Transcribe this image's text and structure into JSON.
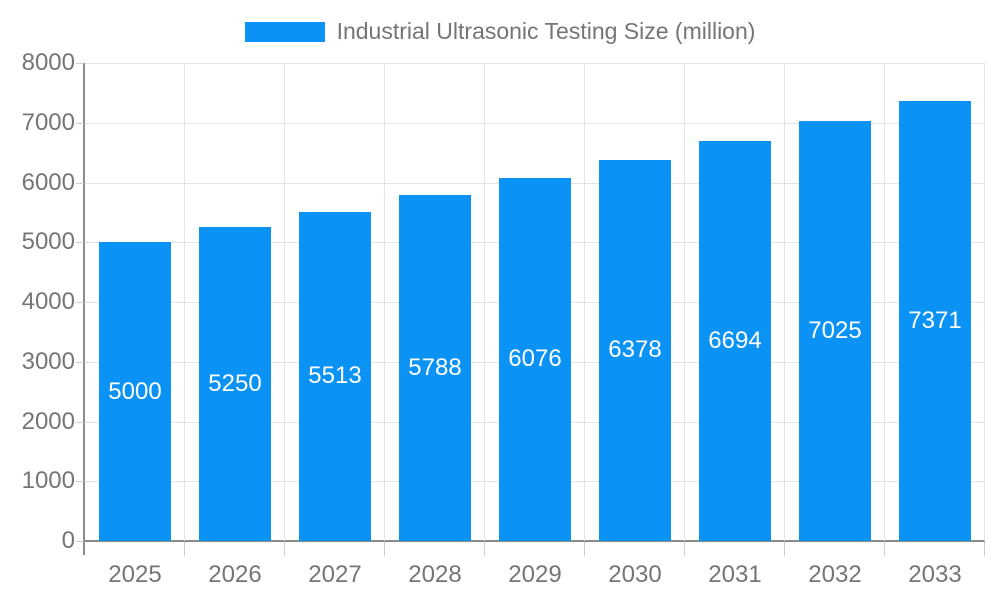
{
  "colors": {
    "bar": "#0b92f5",
    "axis": "#8a8a8a",
    "gridline": "#e3e3e3",
    "tick": "#cccccc",
    "axis_text": "#757575",
    "bar_label_text": "#ffffff",
    "background": "#ffffff"
  },
  "chart_data": {
    "type": "bar",
    "title": "Industrial Ultrasonic Testing Size (million)",
    "series_name": "Industrial Ultrasonic Testing Size (million)",
    "categories": [
      "2025",
      "2026",
      "2027",
      "2028",
      "2029",
      "2030",
      "2031",
      "2032",
      "2033"
    ],
    "values": [
      5000,
      5250,
      5513,
      5788,
      6076,
      6378,
      6694,
      7025,
      7371
    ],
    "bar_value_labels": [
      "5000",
      "5250",
      "5513",
      "5788",
      "6076",
      "6378",
      "6694",
      "7025",
      "7371"
    ],
    "xlabel": "",
    "ylabel": "",
    "ylim": [
      0,
      8000
    ],
    "ytick_step": 1000,
    "yticks": [
      "0",
      "1000",
      "2000",
      "3000",
      "4000",
      "5000",
      "6000",
      "7000",
      "8000"
    ],
    "grid": true,
    "legend_position": "top"
  }
}
